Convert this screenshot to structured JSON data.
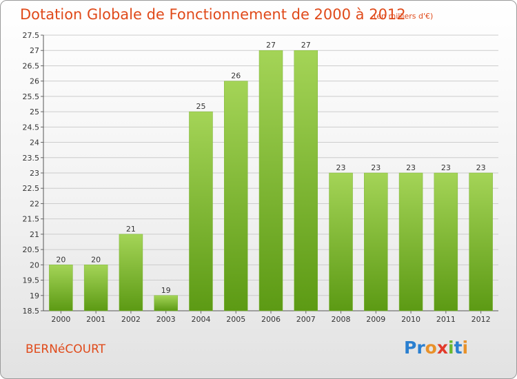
{
  "header": {
    "title": "Dotation Globale de Fonctionnement de 2000 à 2012",
    "unit": "(en milliers d'€)"
  },
  "footer": {
    "commune": "BERNéCOURT",
    "logo": {
      "letters": [
        "P",
        "r",
        "o",
        "x",
        "i",
        "t",
        "i"
      ],
      "colors": [
        "#2a7fd0",
        "#2a7fd0",
        "#e8912a",
        "#e23a2a",
        "#6ab82e",
        "#2a7fd0",
        "#e8912a"
      ]
    }
  },
  "colors": {
    "title": "#e04a1a",
    "bar_light": "#a4d457",
    "bar_dark": "#5c9a14",
    "grid": "#cccccc"
  },
  "chart_data": {
    "type": "bar",
    "title": "Dotation Globale de Fonctionnement de 2000 à 2012",
    "subtitle": "(en milliers d'€)",
    "categories": [
      "2000",
      "2001",
      "2002",
      "2003",
      "2004",
      "2005",
      "2006",
      "2007",
      "2008",
      "2009",
      "2010",
      "2011",
      "2012"
    ],
    "values": [
      20,
      20,
      21,
      19,
      25,
      26,
      27,
      27,
      23,
      23,
      23,
      23,
      23
    ],
    "ylim": [
      18.5,
      27.5
    ],
    "yticks": [
      "18.5",
      "19",
      "19.5",
      "20",
      "20.5",
      "21",
      "21.5",
      "22",
      "22.5",
      "23",
      "23.5",
      "24",
      "24.5",
      "25",
      "25.5",
      "26",
      "26.5",
      "27",
      "27.5"
    ],
    "grid": true,
    "legend": "none"
  }
}
